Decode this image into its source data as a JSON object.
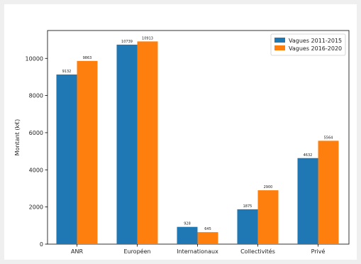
{
  "chart_data": {
    "type": "bar",
    "title": "",
    "xlabel": "",
    "ylabel": "Montant (k€)",
    "categories": [
      "ANR",
      "Européen",
      "Internationaux",
      "Collectivités",
      "Privé"
    ],
    "series": [
      {
        "name": "Vagues 2011-2015",
        "color": "#1f77b4",
        "values": [
          9132,
          10739,
          928,
          1875,
          4632
        ]
      },
      {
        "name": "Vagues 2016-2020",
        "color": "#ff7f0e",
        "values": [
          9863,
          10913,
          645,
          2900,
          5564
        ]
      }
    ],
    "ylim": [
      0,
      11500
    ],
    "yticks": [
      0,
      2000,
      4000,
      6000,
      8000,
      10000
    ],
    "grid": false,
    "legend_position": "top-right"
  }
}
